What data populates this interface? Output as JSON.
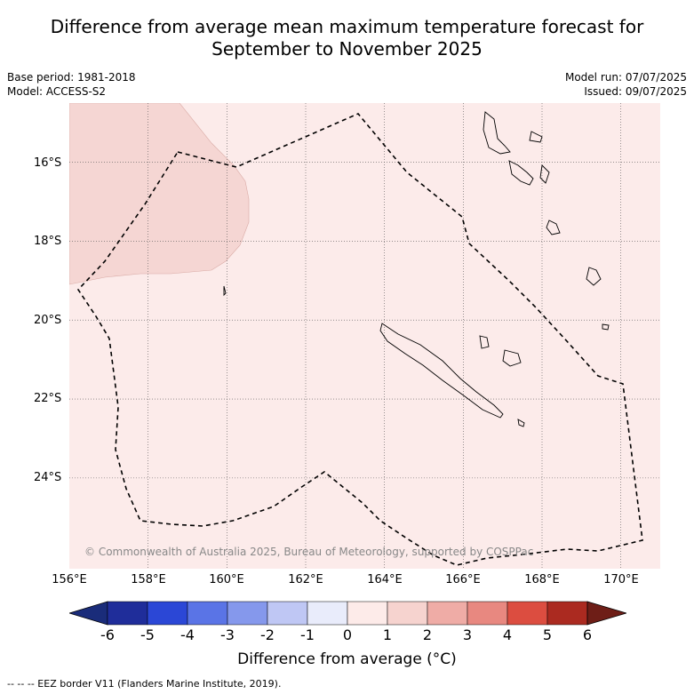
{
  "title_line1": "Difference from average mean maximum temperature forecast for",
  "title_line2": "September to November 2025",
  "meta_left": {
    "base_period": "Base period: 1981-2018",
    "model": "Model: ACCESS-S2"
  },
  "meta_right": {
    "model_run": "Model run: 07/07/2025",
    "issued": "Issued: 09/07/2025"
  },
  "map": {
    "lat_labels": [
      "16°S",
      "18°S",
      "20°S",
      "22°S",
      "24°S"
    ],
    "lon_labels": [
      "156°E",
      "158°E",
      "160°E",
      "162°E",
      "164°E",
      "166°E",
      "168°E",
      "170°E"
    ],
    "lat_values": [
      -16,
      -18,
      -20,
      -22,
      -24
    ],
    "lon_values": [
      156,
      158,
      160,
      162,
      164,
      166,
      168,
      170
    ],
    "lon_range": [
      156,
      171
    ],
    "lat_range": [
      -14.5,
      -26.3
    ],
    "background_color": "#fcebea",
    "anomaly_region_color": "#f5d6d3",
    "copyright": "© Commonwealth of Australia 2025, Bureau of Meteorology, supported by COSPPac"
  },
  "colorbar": {
    "ticks": [
      "-6",
      "-5",
      "-4",
      "-3",
      "-2",
      "-1",
      "0",
      "1",
      "2",
      "3",
      "4",
      "5",
      "6"
    ],
    "colors": [
      "#1f2d9a",
      "#2b47d6",
      "#5a74e6",
      "#8598ec",
      "#bfc7f4",
      "#e9ecfb",
      "#fdebe9",
      "#f6d3cf",
      "#efaca6",
      "#e88880",
      "#dc4d40",
      "#ab2a20"
    ],
    "under_color": "#1a2c7a",
    "over_color": "#6e1e17",
    "label": "Difference from average (°C)"
  },
  "footer": "--  --  -- EEZ border V11 (Flanders Marine Institute, 2019)."
}
